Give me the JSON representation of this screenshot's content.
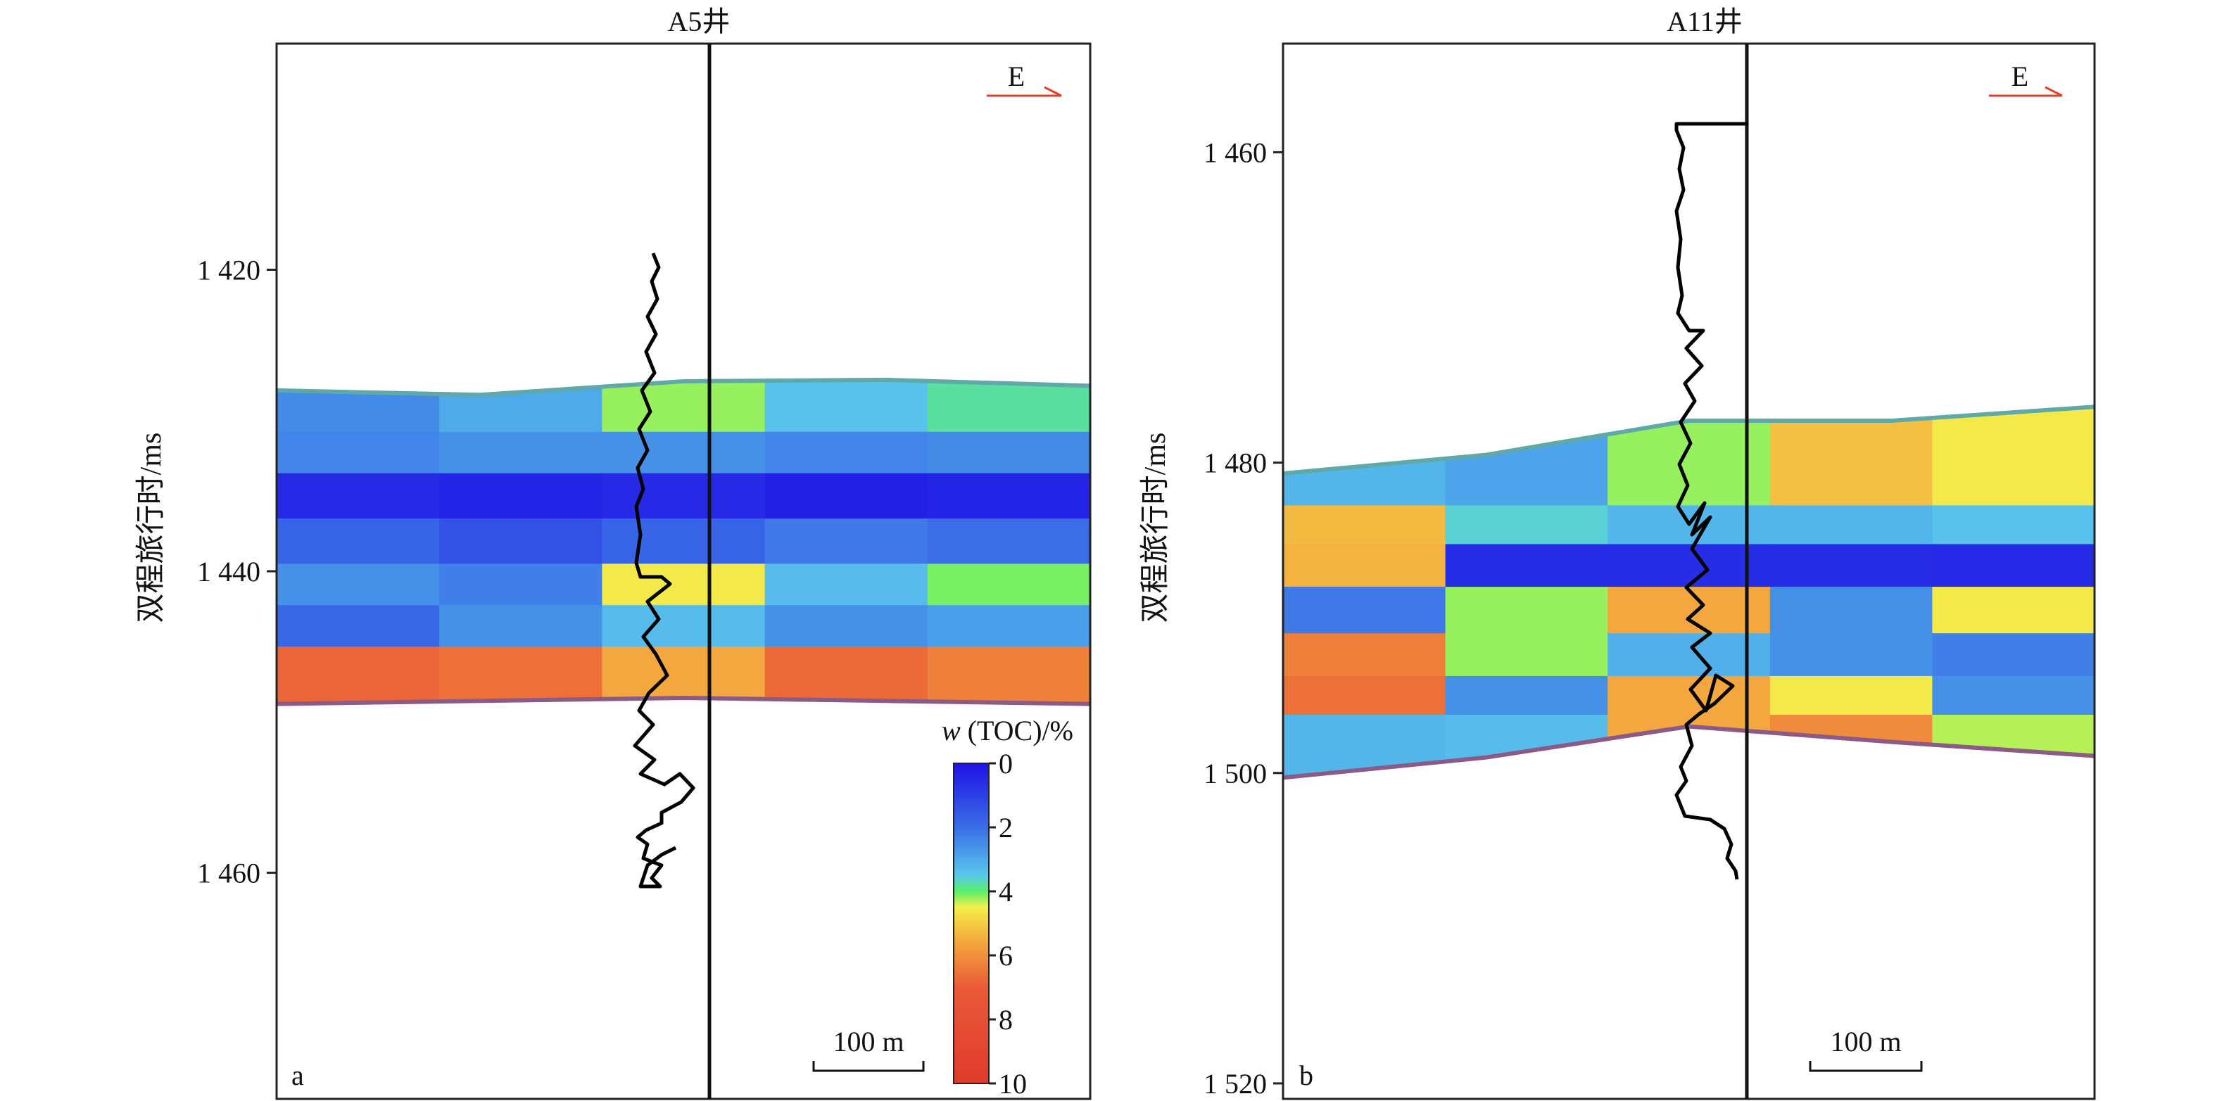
{
  "chart_data": [
    {
      "type": "heatmap",
      "panel_label": "a",
      "title": "A5井",
      "ylabel": "双程旅行时/ms",
      "ylim": [
        1405,
        1475
      ],
      "y_ticks": [
        1420,
        1440,
        1460
      ],
      "y_tick_labels": [
        "1 420",
        "1 440",
        "1 460"
      ],
      "orientation_label": "E",
      "scale_bar_label": "100 m",
      "colorbar": {
        "label_var": "w",
        "label_rest": " (TOC)/%",
        "range": [
          0,
          10
        ],
        "ticks": [
          0,
          2,
          4,
          6,
          8,
          10
        ],
        "tick_labels": [
          "0",
          "2",
          "4",
          "6",
          "8",
          "10"
        ]
      },
      "layer_top_ms": [
        1428.0,
        1428.3,
        1427.4,
        1427.3,
        1427.7
      ],
      "layer_bottom_ms": [
        1448.8,
        1448.6,
        1448.4,
        1448.6,
        1448.8
      ],
      "toc_bands": [
        {
          "time_ms": 1429.5,
          "toc": [
            2.5,
            3.0,
            4.2,
            3.4,
            3.8
          ]
        },
        {
          "time_ms": 1432.0,
          "toc": [
            2.4,
            2.6,
            2.6,
            2.4,
            2.5
          ]
        },
        {
          "time_ms": 1435.0,
          "toc": [
            0.5,
            0.4,
            0.5,
            0.3,
            0.4
          ]
        },
        {
          "time_ms": 1438.0,
          "toc": [
            1.8,
            1.4,
            1.8,
            2.2,
            2.0
          ]
        },
        {
          "time_ms": 1441.0,
          "toc": [
            2.6,
            2.3,
            4.6,
            3.3,
            4.1
          ]
        },
        {
          "time_ms": 1443.5,
          "toc": [
            1.9,
            2.6,
            3.3,
            2.6,
            2.8
          ]
        },
        {
          "time_ms": 1446.5,
          "toc": [
            6.8,
            6.6,
            5.6,
            6.7,
            6.3
          ]
        }
      ]
    },
    {
      "type": "heatmap",
      "panel_label": "b",
      "title": "A11井",
      "ylabel": "双程旅行时/ms",
      "ylim": [
        1453,
        1521
      ],
      "y_ticks": [
        1460,
        1480,
        1500,
        1520
      ],
      "y_tick_labels": [
        "1 460",
        "1 480",
        "1 500",
        "1 520"
      ],
      "orientation_label": "E",
      "scale_bar_label": "100 m",
      "layer_top_ms": [
        1480.7,
        1479.5,
        1477.3,
        1477.3,
        1476.4
      ],
      "layer_bottom_ms": [
        1500.3,
        1499.0,
        1497.0,
        1498.0,
        1498.9
      ],
      "toc_bands": [
        {
          "time_ms": 1481.5,
          "toc": [
            3.2,
            2.9,
            4.2,
            5.2,
            4.6
          ]
        },
        {
          "time_ms": 1484.0,
          "toc": [
            5.3,
            3.6,
            3.2,
            3.2,
            3.4
          ]
        },
        {
          "time_ms": 1486.5,
          "toc": [
            5.4,
            0.6,
            0.6,
            0.6,
            0.5
          ]
        },
        {
          "time_ms": 1489.5,
          "toc": [
            2.2,
            4.2,
            5.6,
            2.6,
            4.6
          ]
        },
        {
          "time_ms": 1492.5,
          "toc": [
            6.3,
            4.2,
            3.1,
            2.6,
            2.3
          ]
        },
        {
          "time_ms": 1495.0,
          "toc": [
            6.6,
            2.6,
            5.6,
            4.6,
            2.6
          ]
        },
        {
          "time_ms": 1497.5,
          "toc": [
            3.2,
            3.3,
            5.6,
            6.1,
            4.3
          ]
        }
      ]
    }
  ]
}
